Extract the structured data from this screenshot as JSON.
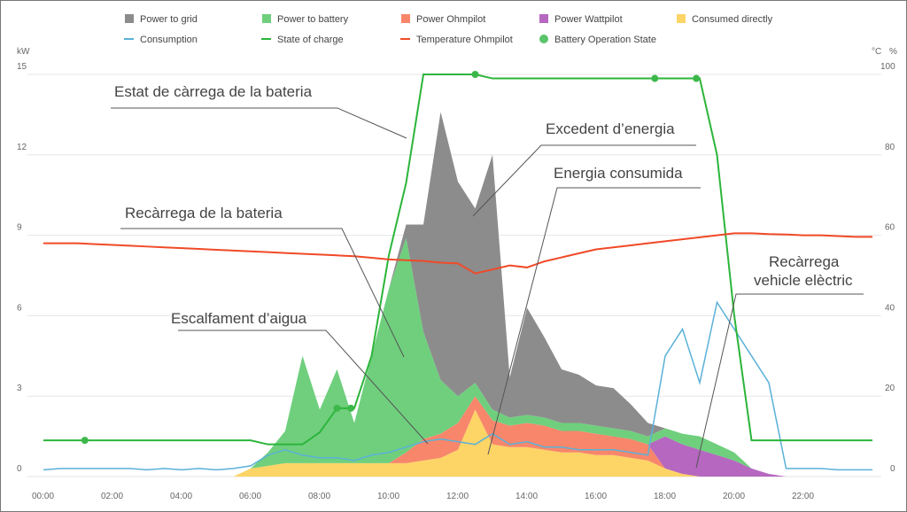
{
  "chart_data": {
    "type": "area",
    "xlabel": "",
    "ylabel_left": "kW",
    "ylabel_right": [
      "°C",
      "%"
    ],
    "x_ticks": [
      "00:00",
      "02:00",
      "04:00",
      "06:00",
      "08:00",
      "10:00",
      "12:00",
      "14:00",
      "16:00",
      "18:00",
      "20:00",
      "22:00"
    ],
    "y_left_ticks": [
      "0",
      "3",
      "6",
      "9",
      "12",
      "15"
    ],
    "y_right_ticks": [
      "0",
      "20",
      "40",
      "60",
      "80",
      "100"
    ],
    "ylim_left": [
      0,
      15
    ],
    "ylim_right": [
      0,
      100
    ],
    "xlim_hours": [
      0,
      24
    ],
    "legend": [
      {
        "name": "Power to grid",
        "color": "#8c8c8c",
        "kind": "square"
      },
      {
        "name": "Power to battery",
        "color": "#6fcf7d",
        "kind": "square"
      },
      {
        "name": "Power Ohmpilot",
        "color": "#f7866b",
        "kind": "square"
      },
      {
        "name": "Power Wattpilot",
        "color": "#b667c0",
        "kind": "square"
      },
      {
        "name": "Consumed directly",
        "color": "#fdd466",
        "kind": "square"
      },
      {
        "name": "Consumption",
        "color": "#5ab1d8",
        "kind": "line"
      },
      {
        "name": "State of charge",
        "color": "#2cb53a",
        "kind": "line"
      },
      {
        "name": "Temperature Ohmpilot",
        "color": "#f04a27",
        "kind": "line"
      },
      {
        "name": "Battery Operation State",
        "color": "#5bc46a",
        "kind": "dot"
      }
    ],
    "x_hours": [
      0,
      0.5,
      1,
      1.5,
      2,
      2.5,
      3,
      3.5,
      4,
      4.5,
      5,
      5.5,
      6,
      6.5,
      7,
      7.5,
      8,
      8.5,
      9,
      9.5,
      10,
      10.5,
      11,
      11.5,
      12,
      12.5,
      13,
      13.5,
      14,
      14.5,
      15,
      15.5,
      16,
      16.5,
      17,
      17.5,
      18,
      18.5,
      19,
      19.5,
      20,
      20.5,
      21,
      21.5,
      22,
      22.5,
      23,
      23.5
    ],
    "stack_order": [
      "Consumed directly",
      "Power Ohmpilot",
      "Power Wattpilot",
      "Power to battery",
      "Power to grid"
    ],
    "series": [
      {
        "name": "Consumed directly",
        "values": [
          0,
          0,
          0,
          0,
          0,
          0,
          0,
          0,
          0,
          0,
          0,
          0,
          0.3,
          0.4,
          0.5,
          0.5,
          0.5,
          0.5,
          0.5,
          0.5,
          0.5,
          0.5,
          0.6,
          0.7,
          1.0,
          2.5,
          1.2,
          1.1,
          1.1,
          1.0,
          0.9,
          0.9,
          0.8,
          0.8,
          0.7,
          0.6,
          0.3,
          0.1,
          0,
          0,
          0,
          0,
          0,
          0,
          0,
          0,
          0,
          0
        ]
      },
      {
        "name": "Power Ohmpilot",
        "values": [
          0,
          0,
          0,
          0,
          0,
          0,
          0,
          0,
          0,
          0,
          0,
          0,
          0,
          0,
          0,
          0,
          0,
          0,
          0,
          0,
          0,
          0.4,
          0.8,
          0.9,
          1.0,
          0.5,
          0.9,
          0.8,
          0.9,
          0.9,
          0.8,
          0.8,
          0.8,
          0.7,
          0.7,
          0.6,
          0,
          0,
          0,
          0,
          0,
          0,
          0,
          0,
          0,
          0,
          0,
          0
        ]
      },
      {
        "name": "Power Wattpilot",
        "values": [
          0,
          0,
          0,
          0,
          0,
          0,
          0,
          0,
          0,
          0,
          0,
          0,
          0,
          0,
          0,
          0,
          0,
          0,
          0,
          0,
          0,
          0,
          0,
          0,
          0,
          0,
          0,
          0,
          0,
          0,
          0,
          0,
          0,
          0,
          0,
          0,
          1.2,
          1.1,
          1.0,
          0.8,
          0.6,
          0.3,
          0.1,
          0,
          0,
          0,
          0,
          0
        ]
      },
      {
        "name": "Power to battery",
        "values": [
          0,
          0,
          0,
          0,
          0,
          0,
          0,
          0,
          0,
          0,
          0,
          0,
          0,
          0.5,
          1.2,
          4,
          2,
          3.5,
          1.5,
          4,
          6.5,
          8,
          4,
          2,
          1,
          0.5,
          0.4,
          0.3,
          0.3,
          0.3,
          0.3,
          0.3,
          0.3,
          0.3,
          0.3,
          0.3,
          0.3,
          0.4,
          0.5,
          0.4,
          0.3,
          0,
          0,
          0,
          0,
          0,
          0,
          0
        ]
      },
      {
        "name": "Power to grid",
        "values": [
          0,
          0,
          0,
          0,
          0,
          0,
          0,
          0,
          0,
          0,
          0,
          0,
          0,
          0,
          0,
          0,
          0,
          0,
          0,
          0,
          0,
          0.5,
          4,
          10,
          8,
          6.5,
          9.5,
          1.5,
          4,
          3,
          2,
          1.8,
          1.5,
          1.5,
          1,
          0.5,
          0,
          0,
          0,
          0,
          0,
          0,
          0,
          0,
          0,
          0,
          0,
          0
        ]
      }
    ],
    "lines": [
      {
        "name": "Consumption",
        "axis": "left",
        "values": [
          0.25,
          0.3,
          0.3,
          0.3,
          0.3,
          0.3,
          0.25,
          0.3,
          0.25,
          0.3,
          0.25,
          0.3,
          0.4,
          0.8,
          1.0,
          0.8,
          0.7,
          0.7,
          0.6,
          0.8,
          0.9,
          1.1,
          1.3,
          1.4,
          1.3,
          1.2,
          1.6,
          1.2,
          1.3,
          1.1,
          1.1,
          1.0,
          1.0,
          1.0,
          0.9,
          0.8,
          4.5,
          5.5,
          3.5,
          6.5,
          5.5,
          4.5,
          3.5,
          0.3,
          0.3,
          0.3,
          0.25,
          0.25
        ]
      },
      {
        "name": "State of charge",
        "axis": "right",
        "values": [
          9,
          9,
          9,
          9,
          9,
          9,
          9,
          9,
          9,
          9,
          9,
          9,
          9,
          8,
          8,
          8,
          11,
          17,
          17,
          30,
          55,
          73,
          100,
          100,
          100,
          100,
          99,
          99,
          99,
          99,
          99,
          99,
          99,
          99,
          99,
          99,
          99,
          99,
          99,
          80,
          40,
          9,
          9,
          9,
          9,
          9,
          9,
          9
        ]
      },
      {
        "name": "Temperature Ohmpilot",
        "axis": "right",
        "values": [
          58,
          58,
          58,
          57.8,
          57.6,
          57.4,
          57.2,
          57,
          56.8,
          56.6,
          56.4,
          56.2,
          56,
          55.8,
          55.6,
          55.4,
          55.2,
          55,
          54.8,
          54.4,
          54,
          53.8,
          53.6,
          53.2,
          53,
          50.5,
          51.5,
          52.5,
          52,
          53.5,
          54.5,
          55.5,
          56.5,
          57,
          57.5,
          58,
          58.5,
          59,
          59.5,
          60,
          60.5,
          60.5,
          60.3,
          60.2,
          60,
          60,
          59.8,
          59.6
        ]
      }
    ],
    "battery_state_points": [
      {
        "x_hour": 1.2,
        "soc": 9
      },
      {
        "x_hour": 8.5,
        "soc": 17
      },
      {
        "x_hour": 8.9,
        "soc": 17
      },
      {
        "x_hour": 12.5,
        "soc": 100
      },
      {
        "x_hour": 17.7,
        "soc": 99
      },
      {
        "x_hour": 18.9,
        "soc": 99
      }
    ],
    "annotations": [
      {
        "text": "Estat de càrrega de la bateria"
      },
      {
        "text": "Excedent d’energia"
      },
      {
        "text": "Energia consumida"
      },
      {
        "text": "Recàrrega de la bateria"
      },
      {
        "text": "Escalfament d’aigua"
      },
      {
        "text": "Recàrrega"
      },
      {
        "text": "vehicle elèctric"
      }
    ]
  }
}
